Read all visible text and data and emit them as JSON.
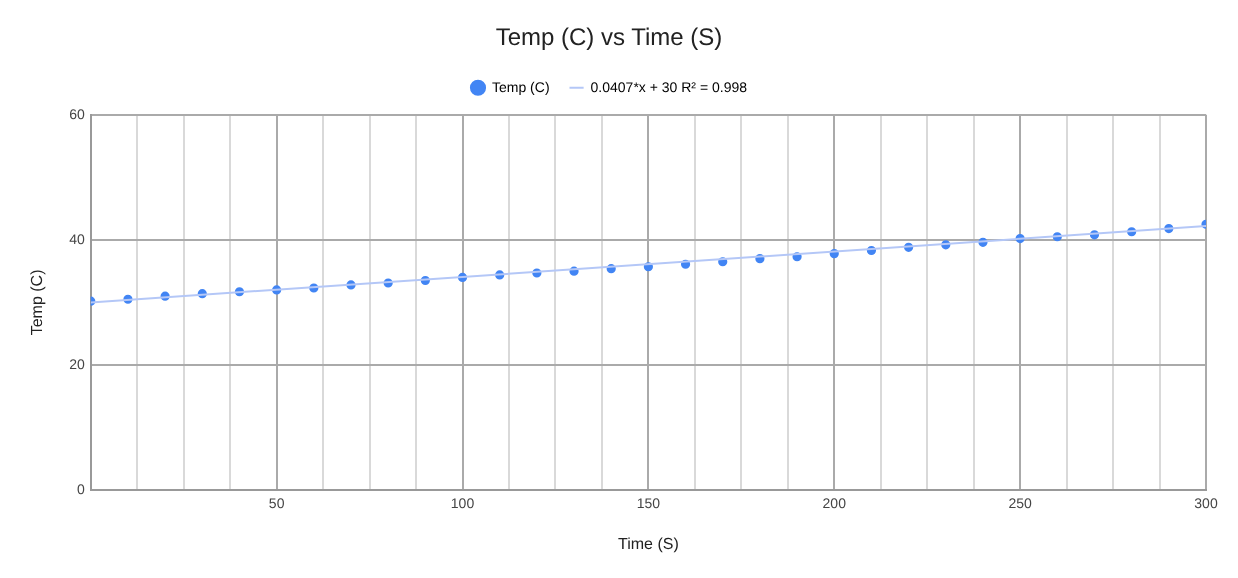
{
  "chart_data": {
    "type": "scatter",
    "title": "Temp (C) vs Time (S)",
    "xlabel": "Time (S)",
    "ylabel": "Temp (C)",
    "legend": "top",
    "grid": true,
    "marker": "circle",
    "xlim": [
      0,
      300
    ],
    "ylim": [
      0,
      60
    ],
    "yticks": [
      0,
      20,
      40,
      60
    ],
    "xticks": [
      {
        "value": 12.5,
        "label": null
      },
      {
        "value": 25,
        "label": null
      },
      {
        "value": 37.5,
        "label": null
      },
      50,
      {
        "value": 62.5,
        "label": null
      },
      {
        "value": 75,
        "label": null
      },
      {
        "value": 87.5,
        "label": null
      },
      100,
      {
        "value": 112.5,
        "label": null
      },
      {
        "value": 125,
        "label": null
      },
      {
        "value": 137.5,
        "label": null
      },
      150,
      {
        "value": 162.5,
        "label": null
      },
      {
        "value": 175,
        "label": null
      },
      {
        "value": 187.5,
        "label": null
      },
      200,
      {
        "value": 212.5,
        "label": null
      },
      {
        "value": 225,
        "label": null
      },
      {
        "value": 237.5,
        "label": null
      },
      250,
      {
        "value": 262.5,
        "label": null
      },
      {
        "value": 275,
        "label": null
      },
      {
        "value": 287.5,
        "label": null
      },
      300
    ],
    "series": [
      {
        "name": "Temp (C)",
        "color": "#4285f4",
        "x": [
          0,
          10,
          20,
          30,
          40,
          50,
          60,
          70,
          80,
          90,
          100,
          110,
          120,
          130,
          140,
          150,
          160,
          170,
          180,
          190,
          200,
          210,
          220,
          230,
          240,
          250,
          260,
          270,
          280,
          290,
          300
        ],
        "values": [
          30.2,
          30.5,
          31.0,
          31.4,
          31.7,
          32.0,
          32.3,
          32.8,
          33.1,
          33.5,
          34.0,
          34.4,
          34.7,
          35.0,
          35.4,
          35.7,
          36.1,
          36.5,
          37.0,
          37.3,
          37.8,
          38.3,
          38.8,
          39.2,
          39.6,
          40.2,
          40.5,
          40.8,
          41.3,
          41.8,
          42.5
        ]
      },
      {
        "name": "0.0407*x + 30 R² = 0.998",
        "type": "line",
        "marker": "none",
        "color": "#b4c7f7",
        "x": [
          0,
          300
        ],
        "values": [
          30,
          42.2
        ]
      }
    ]
  }
}
